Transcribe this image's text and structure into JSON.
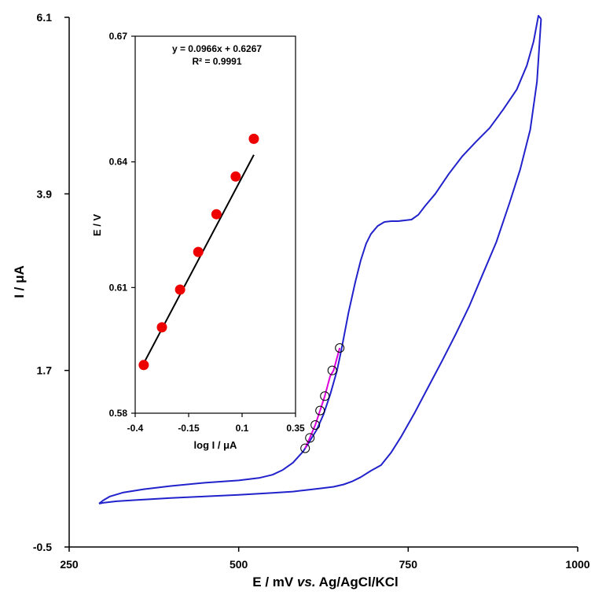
{
  "chart_data": [
    {
      "type": "line",
      "xlabel": {
        "pre": "E / mV ",
        "italic": "vs.",
        "post": " Ag/AgCl/KCl"
      },
      "ylabel": "I / μA",
      "xlim": [
        250,
        1000
      ],
      "ylim": [
        -0.5,
        6.1
      ],
      "xticks": [
        "250",
        "500",
        "750",
        "1000"
      ],
      "yticks": [
        "-0.5",
        "1.7",
        "3.9",
        "6.1"
      ],
      "series": [
        {
          "color": "#2222cc",
          "x": [
            294,
            300,
            310,
            330,
            360,
            400,
            450,
            500,
            530,
            550,
            565,
            580,
            595,
            605,
            615,
            625,
            635,
            645,
            652,
            662,
            672,
            680,
            688,
            695,
            705,
            715,
            725,
            735,
            745,
            755,
            765,
            775,
            790,
            810,
            830,
            850,
            870,
            890,
            910,
            925,
            935,
            942,
            946
          ],
          "y": [
            0.04,
            0.08,
            0.13,
            0.18,
            0.22,
            0.26,
            0.3,
            0.33,
            0.36,
            0.4,
            0.46,
            0.55,
            0.69,
            0.82,
            0.96,
            1.15,
            1.4,
            1.7,
            1.98,
            2.42,
            2.8,
            3.07,
            3.28,
            3.4,
            3.5,
            3.55,
            3.56,
            3.56,
            3.57,
            3.58,
            3.64,
            3.75,
            3.9,
            4.15,
            4.37,
            4.55,
            4.72,
            4.95,
            5.2,
            5.5,
            5.8,
            6.12,
            6.08
          ]
        },
        {
          "color": "#2222cc",
          "x": [
            946,
            940,
            930,
            915,
            900,
            880,
            860,
            840,
            820,
            800,
            780,
            760,
            740,
            725,
            710,
            695,
            680,
            668,
            655,
            640,
            620,
            600,
            580,
            550,
            500,
            450,
            400,
            350,
            320,
            300,
            294
          ],
          "y": [
            6.08,
            5.3,
            4.7,
            4.2,
            3.8,
            3.3,
            2.9,
            2.5,
            2.15,
            1.82,
            1.5,
            1.18,
            0.88,
            0.68,
            0.52,
            0.45,
            0.37,
            0.32,
            0.28,
            0.25,
            0.23,
            0.21,
            0.19,
            0.175,
            0.15,
            0.13,
            0.11,
            0.085,
            0.07,
            0.05,
            0.04
          ]
        },
        {
          "color": "#dd00dd",
          "x": [
            598,
            605,
            613,
            620,
            627,
            635,
            640,
            649
          ],
          "y": [
            0.73,
            0.86,
            1.02,
            1.2,
            1.38,
            1.63,
            1.7,
            1.98
          ]
        }
      ],
      "markers": {
        "style": "open-circle",
        "x": [
          598,
          605,
          613,
          620,
          627,
          638,
          649
        ],
        "y": [
          0.73,
          0.86,
          1.02,
          1.2,
          1.38,
          1.7,
          1.98
        ]
      }
    },
    {
      "type": "scatter",
      "xlabel": "log I / μA",
      "ylabel": "E / V",
      "xlim": [
        -0.4,
        0.35
      ],
      "ylim": [
        0.58,
        0.67
      ],
      "xticks": [
        "-0.4",
        "-0.15",
        "0.1",
        "0.35"
      ],
      "yticks": [
        "0.58",
        "0.61",
        "0.64",
        "0.67"
      ],
      "points": {
        "x": [
          -0.36,
          -0.275,
          -0.19,
          -0.105,
          -0.02,
          0.07,
          0.155
        ],
        "y": [
          0.5915,
          0.6005,
          0.6095,
          0.6185,
          0.6275,
          0.6365,
          0.6455
        ]
      },
      "fit": {
        "x": [
          -0.36,
          0.155
        ],
        "slope": 0.0966,
        "intercept": 0.6267
      },
      "annotation": [
        "y = 0.0966x  + 0.6267",
        "R² = 0.9991"
      ],
      "marker_color": "#ee0000",
      "line_color": "#000000"
    }
  ]
}
